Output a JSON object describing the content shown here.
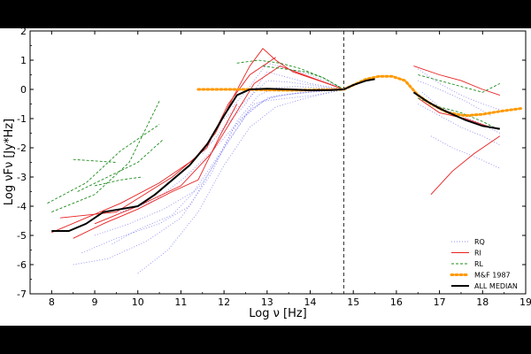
{
  "chart_data": {
    "type": "line",
    "title": "",
    "xlabel": "Log ν [Hz]",
    "ylabel": "Log νFν [Jy*Hz]",
    "xlim": [
      7.5,
      19
    ],
    "ylim": [
      -7,
      2
    ],
    "xticks": [
      "8",
      "9",
      "10",
      "11",
      "12",
      "13",
      "14",
      "15",
      "16",
      "17",
      "18",
      "19"
    ],
    "yticks": [
      "2",
      "1",
      "0",
      "-1",
      "-2",
      "-3",
      "-4",
      "-5",
      "-6",
      "-7"
    ],
    "normalization_line_x": 14.78,
    "legend_position": "bottom-right",
    "colors": {
      "RQ": "#6a6aee",
      "RI": "#e82020",
      "RL": "#1e8c1e",
      "MF": "#ff9900",
      "MEDIAN": "#000000"
    },
    "series": [
      {
        "name": "RQ",
        "style": "dotted",
        "curves": [
          {
            "x": [
              8.7,
              9.5,
              10.5,
              11.2,
              11.8,
              12.3,
              12.8,
              13.2,
              13.7,
              14.2,
              14.78
            ],
            "y": [
              -5.6,
              -5.1,
              -4.6,
              -4.0,
              -2.5,
              -1.1,
              -0.2,
              0.05,
              0.1,
              0.05,
              0.0
            ]
          },
          {
            "x": [
              8.5,
              9.3,
              10.2,
              11.0,
              11.7,
              12.2,
              12.7,
              13.3,
              14.0,
              14.78
            ],
            "y": [
              -6.0,
              -5.8,
              -5.2,
              -4.4,
              -2.9,
              -1.4,
              -0.5,
              -0.2,
              -0.1,
              0.0
            ]
          },
          {
            "x": [
              9.0,
              9.8,
              10.6,
              11.3,
              11.9,
              12.5,
              13.0,
              13.6,
              14.3,
              14.78
            ],
            "y": [
              -5.0,
              -4.6,
              -4.1,
              -3.5,
              -2.2,
              -0.9,
              -0.3,
              -0.15,
              -0.05,
              0.0
            ]
          },
          {
            "x": [
              9.4,
              10.0,
              10.8,
              11.5,
              12.1,
              12.6,
              13.1,
              13.8,
              14.78
            ],
            "y": [
              -5.3,
              -4.8,
              -4.3,
              -3.2,
              -1.8,
              -0.7,
              -0.25,
              -0.1,
              0.0
            ]
          },
          {
            "x": [
              9.6,
              10.4,
              11.1,
              11.8,
              12.4,
              12.9,
              13.5,
              14.1,
              14.78
            ],
            "y": [
              -4.2,
              -3.8,
              -3.0,
              -2.0,
              -1.0,
              -0.4,
              -0.3,
              -0.2,
              0.0
            ]
          },
          {
            "x": [
              10.0,
              10.7,
              11.4,
              12.0,
              12.6,
              13.2,
              13.9,
              14.78
            ],
            "y": [
              -6.3,
              -5.5,
              -4.2,
              -2.6,
              -1.3,
              -0.6,
              -0.3,
              0.0
            ]
          },
          {
            "x": [
              11.5,
              12.0,
              12.5,
              13.0,
              13.5,
              14.0,
              14.78
            ],
            "y": [
              -2.2,
              -1.3,
              -0.5,
              0.6,
              0.4,
              0.2,
              0.0
            ]
          },
          {
            "x": [
              12.2,
              12.6,
              13.0,
              13.5,
              14.0,
              14.4,
              14.78
            ],
            "y": [
              -0.6,
              0.1,
              0.9,
              0.7,
              0.5,
              0.25,
              0.0
            ]
          },
          {
            "x": [
              12.0,
              12.5,
              13.0,
              13.5,
              14.0,
              14.5,
              14.78
            ],
            "y": [
              -1.0,
              -0.4,
              0.3,
              0.25,
              0.15,
              0.05,
              0.0
            ]
          },
          {
            "x": [
              16.5,
              17.0,
              17.5,
              18.0,
              18.4
            ],
            "y": [
              0.7,
              0.2,
              -0.2,
              -0.5,
              -0.7
            ]
          },
          {
            "x": [
              16.5,
              17.0,
              17.5,
              18.0,
              18.4
            ],
            "y": [
              -0.5,
              -0.9,
              -1.3,
              -1.6,
              -1.9
            ]
          },
          {
            "x": [
              16.6,
              17.0,
              17.5,
              18.0,
              18.4
            ],
            "y": [
              -0.1,
              -0.6,
              -0.9,
              -1.2,
              -1.5
            ]
          },
          {
            "x": [
              16.8,
              17.3,
              17.8,
              18.4
            ],
            "y": [
              -1.6,
              -2.0,
              -2.3,
              -2.7
            ]
          },
          {
            "x": [
              16.5,
              17.0,
              17.6,
              18.2
            ],
            "y": [
              0.3,
              0.0,
              -0.4,
              -0.9
            ]
          }
        ]
      },
      {
        "name": "RI",
        "style": "solid",
        "curves": [
          {
            "x": [
              8.0,
              8.8,
              9.6,
              10.5,
              11.3,
              11.8,
              12.2,
              12.6,
              12.9,
              13.2,
              13.6,
              14.0,
              14.4,
              14.78
            ],
            "y": [
              -4.9,
              -4.4,
              -3.9,
              -3.2,
              -2.4,
              -1.5,
              -0.3,
              0.8,
              1.4,
              1.0,
              0.6,
              0.4,
              0.2,
              0.0
            ]
          },
          {
            "x": [
              8.5,
              9.2,
              10.0,
              10.8,
              11.4,
              11.9,
              12.3
            ],
            "y": [
              -5.1,
              -4.6,
              -4.1,
              -3.5,
              -3.1,
              -1.6,
              -0.5
            ]
          },
          {
            "x": [
              9.0,
              10.0,
              11.0,
              11.7,
              12.2,
              12.7,
              13.3,
              14.78
            ],
            "y": [
              -4.6,
              -4.0,
              -3.3,
              -2.2,
              -1.0,
              0.2,
              0.8,
              0.0
            ]
          },
          {
            "x": [
              8.2,
              9.5,
              10.8,
              11.6,
              12.1,
              12.6,
              13.2
            ],
            "y": [
              -4.4,
              -4.2,
              -3.0,
              -2.0,
              -0.5,
              0.5,
              1.1
            ]
          },
          {
            "x": [
              16.4,
              17.0,
              17.5,
              18.0,
              18.4
            ],
            "y": [
              0.8,
              0.5,
              0.3,
              0.0,
              -0.2
            ]
          },
          {
            "x": [
              16.8,
              17.3,
              17.8,
              18.4
            ],
            "y": [
              -3.6,
              -2.8,
              -2.2,
              -1.6
            ]
          },
          {
            "x": [
              16.5,
              17.0,
              17.6,
              18.2
            ],
            "y": [
              -0.3,
              -0.8,
              -1.0,
              -1.3
            ]
          }
        ]
      },
      {
        "name": "RL",
        "style": "dashed",
        "curves": [
          {
            "x": [
              7.9,
              8.8,
              9.6,
              10.5
            ],
            "y": [
              -3.9,
              -3.2,
              -2.1,
              -1.2
            ]
          },
          {
            "x": [
              8.0,
              9.0,
              9.8,
              10.5
            ],
            "y": [
              -4.2,
              -3.6,
              -2.5,
              -0.4
            ]
          },
          {
            "x": [
              8.6,
              9.3,
              10.0,
              10.6
            ],
            "y": [
              -3.5,
              -3.0,
              -2.5,
              -1.7
            ]
          },
          {
            "x": [
              8.5,
              9.5
            ],
            "y": [
              -2.4,
              -2.5
            ]
          },
          {
            "x": [
              9.0,
              9.6,
              10.1
            ],
            "y": [
              -3.3,
              -3.1,
              -3.0
            ]
          },
          {
            "x": [
              12.3,
              12.8,
              13.3,
              13.8,
              14.3,
              14.78
            ],
            "y": [
              0.9,
              1.0,
              0.9,
              0.7,
              0.4,
              0.0
            ]
          },
          {
            "x": [
              12.9,
              13.4,
              13.9,
              14.3,
              14.78
            ],
            "y": [
              0.8,
              0.7,
              0.6,
              0.4,
              0.0
            ]
          },
          {
            "x": [
              16.5,
              17.0,
              17.5,
              18.0,
              18.4
            ],
            "y": [
              0.5,
              0.3,
              0.1,
              -0.1,
              0.2
            ]
          },
          {
            "x": [
              16.5,
              17.0,
              17.5,
              18.0,
              18.4
            ],
            "y": [
              -0.3,
              -0.6,
              -0.8,
              -1.1,
              -1.4
            ]
          }
        ]
      },
      {
        "name": "M&F 1987",
        "style": "thick-dotted",
        "curves": [
          {
            "x": [
              11.4,
              12.0,
              12.5,
              13.0,
              13.5,
              14.0,
              14.5,
              14.78,
              15.0,
              15.3,
              15.6,
              15.9,
              16.2,
              16.5,
              16.8,
              17.2,
              17.6,
              18.0,
              18.4,
              18.9
            ],
            "y": [
              0.0,
              0.0,
              0.0,
              -0.02,
              -0.03,
              -0.02,
              -0.01,
              0.0,
              0.15,
              0.35,
              0.45,
              0.45,
              0.3,
              -0.2,
              -0.5,
              -0.8,
              -0.9,
              -0.85,
              -0.75,
              -0.65
            ]
          }
        ]
      },
      {
        "name": "ALL MEDIAN",
        "style": "solid-thick",
        "curves": [
          {
            "x": [
              8.0,
              8.4,
              8.8,
              9.2,
              9.6,
              10.0,
              10.4,
              10.8,
              11.2,
              11.6,
              12.0,
              12.3,
              12.6,
              13.0,
              13.5,
              14.0,
              14.5,
              14.78,
              15.0,
              15.3,
              15.5
            ],
            "y": [
              -4.85,
              -4.85,
              -4.6,
              -4.2,
              -4.1,
              -4.0,
              -3.6,
              -3.1,
              -2.6,
              -1.9,
              -0.9,
              -0.2,
              0.0,
              0.02,
              0.0,
              -0.03,
              -0.02,
              0.0,
              0.15,
              0.3,
              0.35
            ]
          },
          {
            "x": [
              16.4,
              16.7,
              17.0,
              17.3,
              17.6,
              18.0,
              18.4
            ],
            "y": [
              -0.1,
              -0.4,
              -0.65,
              -0.85,
              -1.05,
              -1.25,
              -1.35
            ]
          }
        ]
      }
    ],
    "legend": [
      {
        "label": "RQ",
        "key": "RQ"
      },
      {
        "label": "RI",
        "key": "RI"
      },
      {
        "label": "RL",
        "key": "RL"
      },
      {
        "label": "M&F 1987",
        "key": "MF"
      },
      {
        "label": "ALL MEDIAN",
        "key": "MEDIAN"
      }
    ]
  }
}
